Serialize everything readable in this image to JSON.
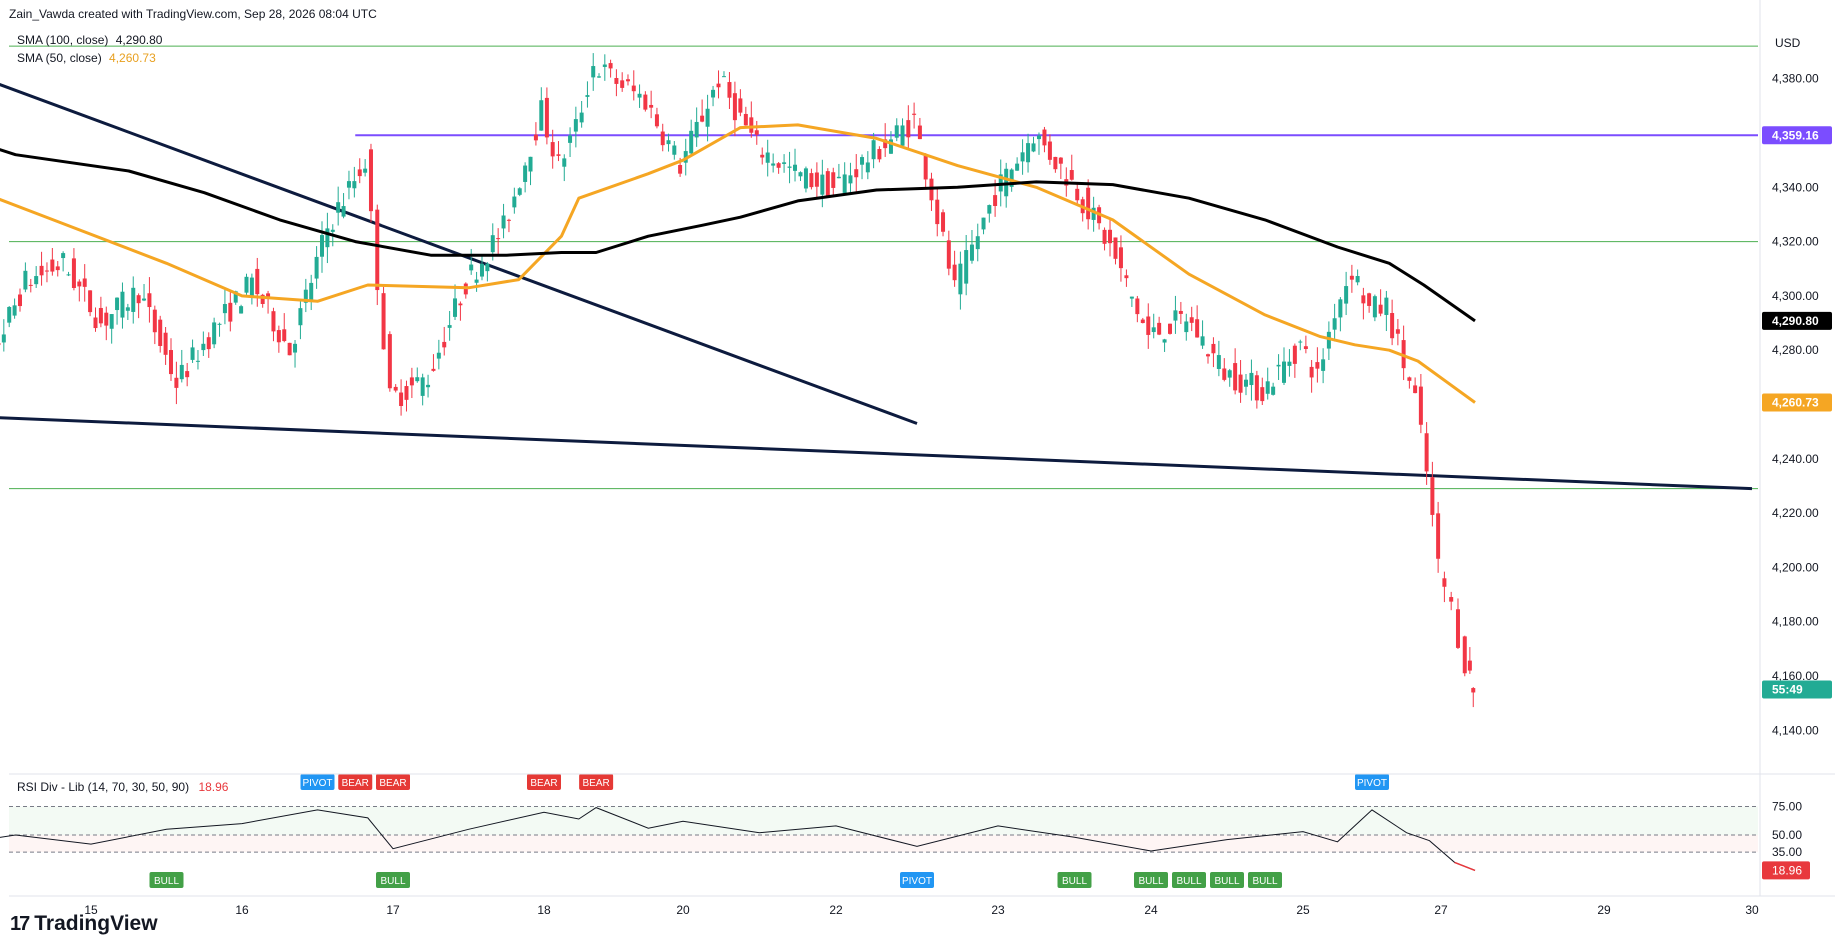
{
  "header": {
    "attribution": "Zain_Vawda created with TradingView.com, Sep 28, 2026 08:04 UTC"
  },
  "legend": {
    "sma100_label": "SMA (100, close)",
    "sma100_value": "4,290.80",
    "sma50_label": "SMA (50, close)",
    "sma50_value": "4,260.73"
  },
  "rsi_legend": {
    "label": "RSI Div - Lib (14, 70, 30, 50, 90)",
    "value": "18.96"
  },
  "brand": {
    "name": "TradingView"
  },
  "axis": {
    "currency": "USD"
  },
  "colors": {
    "up": "#22ab94",
    "down": "#f23645",
    "sma50": "#f5a623",
    "sma100": "#000000",
    "resistance": "#7b4dff",
    "trendline": "#0d1b3e",
    "hline": "#4caf50",
    "bull_label": "#43a047",
    "bear_label": "#e53935",
    "pivot_label": "#2196f3"
  },
  "chart_data": {
    "type": "candlestick",
    "title": "",
    "ylim": [
      4125,
      4395
    ],
    "y_ticks": [
      "4,140.00",
      "4,160.00",
      "4,180.00",
      "4,200.00",
      "4,220.00",
      "4,240.00",
      "4,260.00",
      "4,280.00",
      "4,300.00",
      "4,320.00",
      "4,340.00",
      "4,360.00",
      "4,380.00"
    ],
    "y_tick_values": [
      4140,
      4160,
      4180,
      4200,
      4220,
      4240,
      4260,
      4280,
      4300,
      4320,
      4340,
      4360,
      4380
    ],
    "x_ticks": [
      "15",
      "16",
      "17",
      "18",
      "20",
      "22",
      "23",
      "24",
      "25",
      "27",
      "29",
      "30"
    ],
    "x_tick_dates": [
      "2026-09-15",
      "2026-09-16",
      "2026-09-17",
      "2026-09-18",
      "2026-09-20",
      "2026-09-22",
      "2026-09-23",
      "2026-09-24",
      "2026-09-25",
      "2026-09-27",
      "2026-09-29",
      "2026-09-30"
    ],
    "price_labels": [
      {
        "text": "4,359.16",
        "value": 4359.16,
        "color": "#7b4dff"
      },
      {
        "text": "4,290.80",
        "value": 4290.8,
        "color": "#000000"
      },
      {
        "text": "4,260.73",
        "value": 4260.73,
        "color": "#f5a623"
      },
      {
        "text": "55:49",
        "value": 4155,
        "color": "#22ab94"
      }
    ],
    "horizontal_levels": [
      {
        "value": 4359.16,
        "color": "#7b4dff",
        "from_date": "2026-09-16T18:00"
      },
      {
        "value": 4320,
        "color": "#4caf50"
      },
      {
        "value": 4229,
        "color": "#4caf50"
      },
      {
        "value": 4392,
        "color": "#4caf50"
      }
    ],
    "trendlines": [
      {
        "from": [
          "2026-09-14T00:00",
          4386
        ],
        "to": [
          "2026-09-22T12:00",
          4253
        ]
      },
      {
        "from": [
          "2026-09-14T00:00",
          4256
        ],
        "to": [
          "2026-09-30T00:00",
          4229
        ]
      }
    ],
    "close_series": [
      {
        "t": "2026-09-14T02:00",
        "c": 4295
      },
      {
        "t": "2026-09-14T08:00",
        "c": 4275
      },
      {
        "t": "2026-09-14T14:00",
        "c": 4305
      },
      {
        "t": "2026-09-14T20:00",
        "c": 4312
      },
      {
        "t": "2026-09-15T02:00",
        "c": 4290
      },
      {
        "t": "2026-09-15T08:00",
        "c": 4302
      },
      {
        "t": "2026-09-15T14:00",
        "c": 4268
      },
      {
        "t": "2026-09-15T20:00",
        "c": 4288
      },
      {
        "t": "2026-09-16T02:00",
        "c": 4305
      },
      {
        "t": "2026-09-16T08:00",
        "c": 4280
      },
      {
        "t": "2026-09-16T14:00",
        "c": 4325
      },
      {
        "t": "2026-09-16T20:00",
        "c": 4350
      },
      {
        "t": "2026-09-17T00:00",
        "c": 4262
      },
      {
        "t": "2026-09-17T06:00",
        "c": 4270
      },
      {
        "t": "2026-09-17T12:00",
        "c": 4305
      },
      {
        "t": "2026-09-17T18:00",
        "c": 4325
      },
      {
        "t": "2026-09-18T00:00",
        "c": 4368
      },
      {
        "t": "2026-09-18T06:00",
        "c": 4348
      },
      {
        "t": "2026-09-18T12:00",
        "c": 4362
      },
      {
        "t": "2026-09-18T18:00",
        "c": 4385
      },
      {
        "t": "2026-09-19T12:00",
        "c": 4372
      },
      {
        "t": "2026-09-20T00:00",
        "c": 4348
      },
      {
        "t": "2026-09-20T12:00",
        "c": 4380
      },
      {
        "t": "2026-09-21T00:00",
        "c": 4355
      },
      {
        "t": "2026-09-21T12:00",
        "c": 4345
      },
      {
        "t": "2026-09-22T00:00",
        "c": 4340
      },
      {
        "t": "2026-09-22T12:00",
        "c": 4365
      },
      {
        "t": "2026-09-22T18:00",
        "c": 4302
      },
      {
        "t": "2026-09-23T00:00",
        "c": 4338
      },
      {
        "t": "2026-09-23T06:00",
        "c": 4360
      },
      {
        "t": "2026-09-23T12:00",
        "c": 4342
      },
      {
        "t": "2026-09-23T18:00",
        "c": 4318
      },
      {
        "t": "2026-09-24T00:00",
        "c": 4285
      },
      {
        "t": "2026-09-24T06:00",
        "c": 4292
      },
      {
        "t": "2026-09-24T12:00",
        "c": 4272
      },
      {
        "t": "2026-09-24T18:00",
        "c": 4265
      },
      {
        "t": "2026-09-25T00:00",
        "c": 4282
      },
      {
        "t": "2026-09-25T06:00",
        "c": 4270
      },
      {
        "t": "2026-09-25T12:00",
        "c": 4295
      },
      {
        "t": "2026-09-25T18:00",
        "c": 4310
      },
      {
        "t": "2026-09-26T00:00",
        "c": 4295
      },
      {
        "t": "2026-09-26T06:00",
        "c": 4296
      },
      {
        "t": "2026-09-26T12:00",
        "c": 4275
      },
      {
        "t": "2026-09-26T16:00",
        "c": 4262
      },
      {
        "t": "2026-09-26T20:00",
        "c": 4235
      },
      {
        "t": "2026-09-27T00:00",
        "c": 4200
      },
      {
        "t": "2026-09-27T04:00",
        "c": 4185
      },
      {
        "t": "2026-09-27T08:00",
        "c": 4165
      },
      {
        "t": "2026-09-27T10:00",
        "c": 4155
      }
    ],
    "sma50": [
      {
        "t": "2026-09-14T00:00",
        "v": 4344
      },
      {
        "t": "2026-09-14T18:00",
        "v": 4328
      },
      {
        "t": "2026-09-15T12:00",
        "v": 4312
      },
      {
        "t": "2026-09-16T00:00",
        "v": 4300
      },
      {
        "t": "2026-09-16T12:00",
        "v": 4298
      },
      {
        "t": "2026-09-16T20:00",
        "v": 4304
      },
      {
        "t": "2026-09-17T12:00",
        "v": 4303
      },
      {
        "t": "2026-09-17T20:00",
        "v": 4306
      },
      {
        "t": "2026-09-18T06:00",
        "v": 4322
      },
      {
        "t": "2026-09-18T12:00",
        "v": 4336
      },
      {
        "t": "2026-09-19T12:00",
        "v": 4345
      },
      {
        "t": "2026-09-20T00:00",
        "v": 4350
      },
      {
        "t": "2026-09-20T18:00",
        "v": 4362
      },
      {
        "t": "2026-09-21T12:00",
        "v": 4363
      },
      {
        "t": "2026-09-22T06:00",
        "v": 4358
      },
      {
        "t": "2026-09-22T18:00",
        "v": 4348
      },
      {
        "t": "2026-09-23T06:00",
        "v": 4340
      },
      {
        "t": "2026-09-23T18:00",
        "v": 4328
      },
      {
        "t": "2026-09-24T06:00",
        "v": 4308
      },
      {
        "t": "2026-09-24T18:00",
        "v": 4293
      },
      {
        "t": "2026-09-25T06:00",
        "v": 4285
      },
      {
        "t": "2026-09-25T18:00",
        "v": 4282
      },
      {
        "t": "2026-09-26T06:00",
        "v": 4280
      },
      {
        "t": "2026-09-26T16:00",
        "v": 4276
      },
      {
        "t": "2026-09-27T10:00",
        "v": 4260.73
      }
    ],
    "sma100": [
      {
        "t": "2026-09-14T00:00",
        "v": 4361
      },
      {
        "t": "2026-09-14T12:00",
        "v": 4352
      },
      {
        "t": "2026-09-15T06:00",
        "v": 4346
      },
      {
        "t": "2026-09-15T18:00",
        "v": 4338
      },
      {
        "t": "2026-09-16T06:00",
        "v": 4328
      },
      {
        "t": "2026-09-16T18:00",
        "v": 4320
      },
      {
        "t": "2026-09-17T06:00",
        "v": 4315
      },
      {
        "t": "2026-09-17T18:00",
        "v": 4315
      },
      {
        "t": "2026-09-18T06:00",
        "v": 4316
      },
      {
        "t": "2026-09-18T18:00",
        "v": 4316
      },
      {
        "t": "2026-09-19T12:00",
        "v": 4322
      },
      {
        "t": "2026-09-20T06:00",
        "v": 4326
      },
      {
        "t": "2026-09-20T18:00",
        "v": 4329
      },
      {
        "t": "2026-09-21T12:00",
        "v": 4335
      },
      {
        "t": "2026-09-22T06:00",
        "v": 4339
      },
      {
        "t": "2026-09-22T18:00",
        "v": 4340
      },
      {
        "t": "2026-09-23T06:00",
        "v": 4342
      },
      {
        "t": "2026-09-23T18:00",
        "v": 4341
      },
      {
        "t": "2026-09-24T06:00",
        "v": 4336
      },
      {
        "t": "2026-09-24T18:00",
        "v": 4328
      },
      {
        "t": "2026-09-25T12:00",
        "v": 4318
      },
      {
        "t": "2026-09-26T06:00",
        "v": 4312
      },
      {
        "t": "2026-09-26T18:00",
        "v": 4304
      },
      {
        "t": "2026-09-27T10:00",
        "v": 4290.8
      }
    ],
    "rsi": {
      "levels": [
        75,
        50,
        35
      ],
      "level_labels": [
        "75.00",
        "50.00",
        "35.00"
      ],
      "current": 18.96,
      "current_label": "18.96",
      "values": [
        {
          "t": "2026-09-14T00:00",
          "v": 40
        },
        {
          "t": "2026-09-14T12:00",
          "v": 50
        },
        {
          "t": "2026-09-15T00:00",
          "v": 42
        },
        {
          "t": "2026-09-15T12:00",
          "v": 55
        },
        {
          "t": "2026-09-16T00:00",
          "v": 60
        },
        {
          "t": "2026-09-16T12:00",
          "v": 72
        },
        {
          "t": "2026-09-16T20:00",
          "v": 65
        },
        {
          "t": "2026-09-17T00:00",
          "v": 38
        },
        {
          "t": "2026-09-17T12:00",
          "v": 55
        },
        {
          "t": "2026-09-18T00:00",
          "v": 70
        },
        {
          "t": "2026-09-18T12:00",
          "v": 64
        },
        {
          "t": "2026-09-18T18:00",
          "v": 74
        },
        {
          "t": "2026-09-19T12:00",
          "v": 56
        },
        {
          "t": "2026-09-20T00:00",
          "v": 62
        },
        {
          "t": "2026-09-21T00:00",
          "v": 52
        },
        {
          "t": "2026-09-22T00:00",
          "v": 58
        },
        {
          "t": "2026-09-22T12:00",
          "v": 40
        },
        {
          "t": "2026-09-23T00:00",
          "v": 58
        },
        {
          "t": "2026-09-23T12:00",
          "v": 48
        },
        {
          "t": "2026-09-24T00:00",
          "v": 36
        },
        {
          "t": "2026-09-24T12:00",
          "v": 46
        },
        {
          "t": "2026-09-25T00:00",
          "v": 53
        },
        {
          "t": "2026-09-25T12:00",
          "v": 44
        },
        {
          "t": "2026-09-26T00:00",
          "v": 72
        },
        {
          "t": "2026-09-26T12:00",
          "v": 52
        },
        {
          "t": "2026-09-26T20:00",
          "v": 45
        },
        {
          "t": "2026-09-27T04:00",
          "v": 26
        },
        {
          "t": "2026-09-27T10:00",
          "v": 18.96
        }
      ],
      "markers": [
        {
          "text": "BULL",
          "t": "2026-09-14T00:00",
          "type": "bull"
        },
        {
          "text": "BULL",
          "t": "2026-09-15T12:00",
          "type": "bull"
        },
        {
          "text": "PIVOT",
          "t": "2026-09-16T12:00",
          "type": "pivot"
        },
        {
          "text": "BEAR",
          "t": "2026-09-16T18:00",
          "type": "bear"
        },
        {
          "text": "BEAR",
          "t": "2026-09-17T00:00",
          "type": "bear"
        },
        {
          "text": "BULL",
          "t": "2026-09-17T00:00",
          "type": "bull"
        },
        {
          "text": "BEAR",
          "t": "2026-09-18T00:00",
          "type": "bear"
        },
        {
          "text": "BEAR",
          "t": "2026-09-18T18:00",
          "type": "bear"
        },
        {
          "text": "PIVOT",
          "t": "2026-09-22T12:00",
          "type": "pivot-low"
        },
        {
          "text": "BULL",
          "t": "2026-09-23T12:00",
          "type": "bull"
        },
        {
          "text": "BULL",
          "t": "2026-09-24T00:00",
          "type": "bull"
        },
        {
          "text": "BULL",
          "t": "2026-09-24T06:00",
          "type": "bull"
        },
        {
          "text": "BULL",
          "t": "2026-09-24T12:00",
          "type": "bull"
        },
        {
          "text": "BULL",
          "t": "2026-09-24T18:00",
          "type": "bull"
        },
        {
          "text": "PIVOT",
          "t": "2026-09-26T00:00",
          "type": "pivot"
        }
      ]
    }
  }
}
